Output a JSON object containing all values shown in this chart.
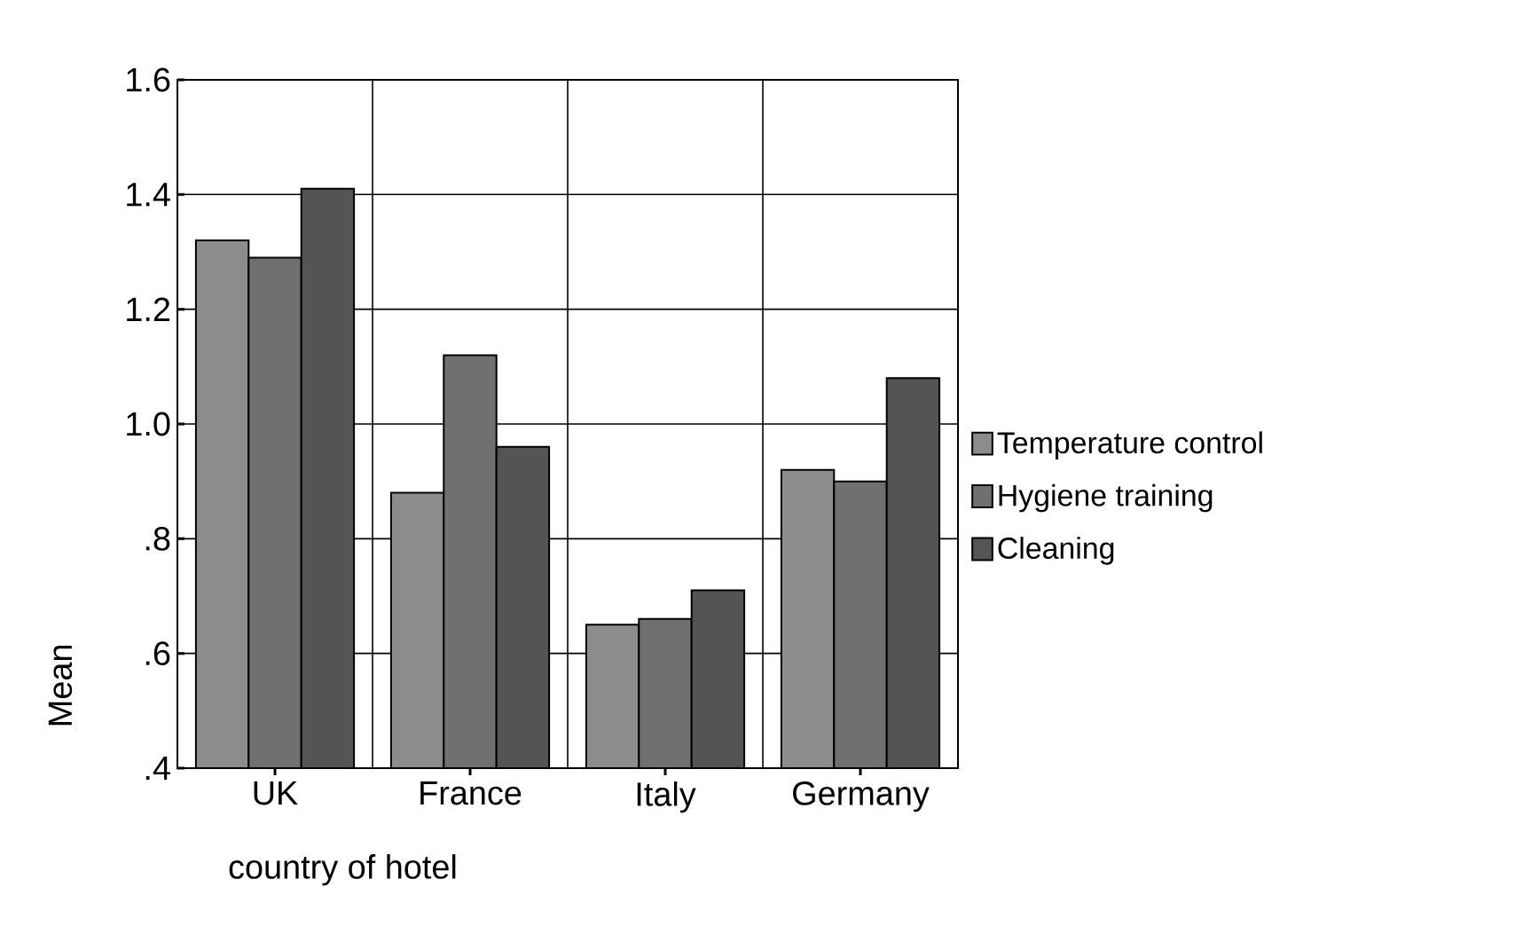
{
  "chart_data": {
    "type": "bar",
    "xlabel": "country of hotel",
    "ylabel": "Mean",
    "categories": [
      "UK",
      "France",
      "Italy",
      "Germany"
    ],
    "series": [
      {
        "name": "Temperature control",
        "color": "#8c8c8c",
        "values": [
          1.32,
          0.88,
          0.65,
          0.92
        ]
      },
      {
        "name": "Hygiene training",
        "color": "#707070",
        "values": [
          1.29,
          1.12,
          0.66,
          0.9
        ]
      },
      {
        "name": "Cleaning",
        "color": "#545454",
        "values": [
          1.41,
          0.96,
          0.71,
          1.08
        ]
      }
    ],
    "ylim": [
      0.4,
      1.6
    ],
    "yticks": [
      {
        "value": 0.4,
        "label": ".4"
      },
      {
        "value": 0.6,
        "label": ".6"
      },
      {
        "value": 0.8,
        "label": ".8"
      },
      {
        "value": 1.0,
        "label": "1.0"
      },
      {
        "value": 1.2,
        "label": "1.2"
      },
      {
        "value": 1.4,
        "label": "1.4"
      },
      {
        "value": 1.6,
        "label": "1.6"
      }
    ],
    "grid": true,
    "legend": "right"
  }
}
